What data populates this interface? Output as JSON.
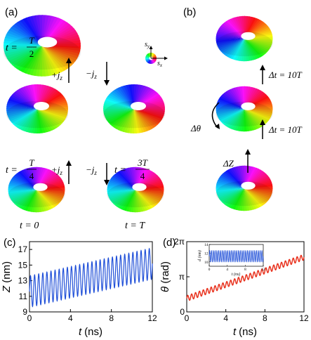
{
  "figure": {
    "panels": {
      "a": {
        "label": "(a)"
      },
      "b": {
        "label": "(b)"
      },
      "c": {
        "label": "(c)"
      },
      "d": {
        "label": "(d)"
      }
    },
    "panel_a": {
      "t_half_prefix": "t =",
      "t_half_num": "T",
      "t_half_den": "2",
      "t_quarter_prefix": "t =",
      "t_quarter_num": "T",
      "t_quarter_den": "4",
      "t_3quarter_prefix": "t =",
      "t_3quarter_num": "3T",
      "t_3quarter_den": "4",
      "t_zero": "t = 0",
      "t_full": "t = T",
      "plus_jz": "+j",
      "minus_jz": "−j",
      "jz_sub": "z",
      "legend_sy": "s",
      "legend_sy_sub": "y",
      "legend_sx": "s",
      "legend_sx_sub": "x"
    },
    "panel_b": {
      "delta_t_top": "Δt = 10T",
      "delta_t_bottom": "Δt = 10T",
      "delta_theta": "Δθ",
      "delta_z": "ΔZ"
    }
  },
  "chart_data": [
    {
      "type": "line",
      "panel": "(c)",
      "xlabel_main": "t",
      "xlabel_unit": "(ns)",
      "ylabel": "Z (nm)",
      "xlim": [
        0,
        12
      ],
      "ylim": [
        9,
        18
      ],
      "xticks": [
        0,
        4,
        8,
        12
      ],
      "yticks": [
        9,
        11,
        13,
        15,
        17
      ],
      "color": "#1f4fd8",
      "series": [
        {
          "period_ns": 0.4,
          "center_start": 11.6,
          "center_end": 15.2,
          "amplitude_start": 2.0,
          "amplitude_end": 2.0
        }
      ]
    },
    {
      "type": "line",
      "panel": "(d)",
      "xlabel_main": "t",
      "xlabel_unit": "(ns)",
      "ylabel": "θ (rad)",
      "xlim": [
        0,
        12
      ],
      "ylim": [
        0,
        6.2832
      ],
      "xticks": [
        0,
        4,
        8,
        12
      ],
      "ytick_labels": [
        "0",
        "π",
        "2π"
      ],
      "color": "#e8321e",
      "series": [
        {
          "period_ns": 0.4,
          "start": 1.2,
          "end": 4.9,
          "amplitude": 0.25
        }
      ],
      "inset": {
        "type": "line",
        "ylabel": "d (nm)",
        "xlabel": "t (ns)",
        "xlim": [
          0,
          12
        ],
        "ylim": [
          9,
          14
        ],
        "xticks": [
          0,
          4,
          8,
          12
        ],
        "yticks": [
          10,
          12,
          14
        ],
        "color": "#1f4fd8",
        "series": [
          {
            "period_ns": 0.4,
            "center": 11.3,
            "amplitude": 1.3
          }
        ]
      }
    }
  ]
}
